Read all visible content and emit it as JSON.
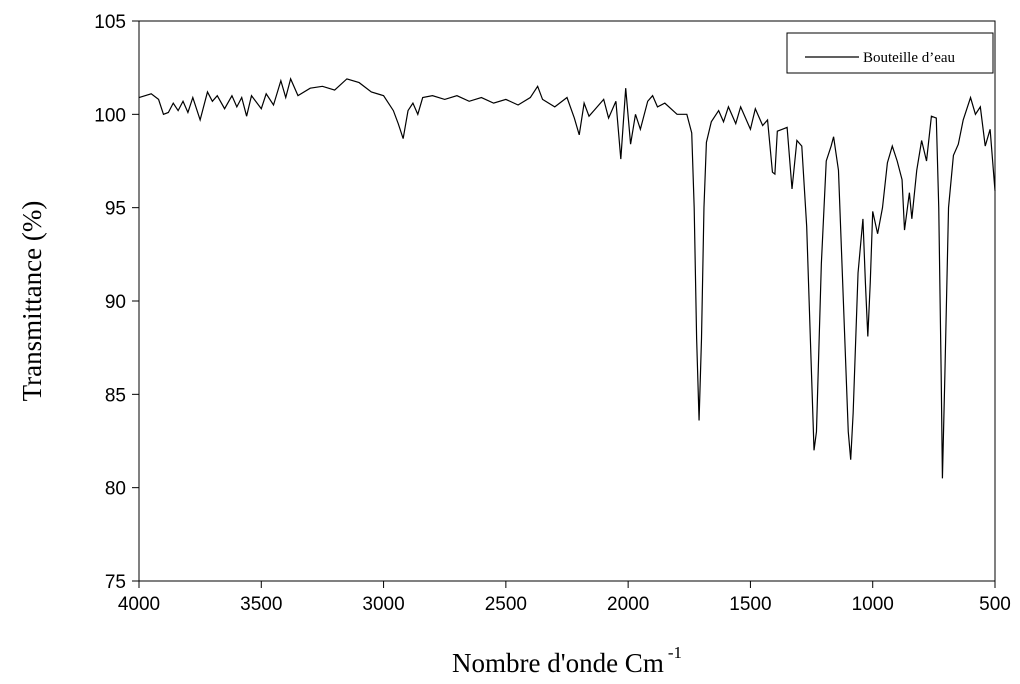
{
  "chart_data": {
    "type": "line",
    "xlabel": {
      "text": "Nombre d'onde Cm",
      "superscript": "-1"
    },
    "ylabel": "Transmittance (%)",
    "xlim": [
      4000,
      500
    ],
    "xticks": [
      4000,
      3500,
      3000,
      2500,
      2000,
      1500,
      1000,
      500
    ],
    "ylim": [
      75,
      105
    ],
    "yticks": [
      75,
      80,
      85,
      90,
      95,
      100,
      105
    ],
    "legend": "top-right",
    "x": [
      4000,
      3950,
      3920,
      3900,
      3880,
      3860,
      3840,
      3820,
      3800,
      3780,
      3750,
      3720,
      3700,
      3680,
      3650,
      3620,
      3600,
      3580,
      3560,
      3540,
      3500,
      3480,
      3450,
      3420,
      3400,
      3380,
      3350,
      3300,
      3250,
      3200,
      3150,
      3100,
      3050,
      3000,
      2960,
      2940,
      2920,
      2900,
      2880,
      2860,
      2840,
      2800,
      2750,
      2700,
      2650,
      2600,
      2550,
      2500,
      2450,
      2400,
      2370,
      2350,
      2300,
      2250,
      2220,
      2200,
      2180,
      2160,
      2140,
      2100,
      2080,
      2050,
      2030,
      2010,
      1990,
      1970,
      1950,
      1920,
      1900,
      1880,
      1850,
      1800,
      1760,
      1740,
      1730,
      1720,
      1710,
      1700,
      1690,
      1680,
      1660,
      1630,
      1610,
      1590,
      1560,
      1540,
      1500,
      1480,
      1450,
      1430,
      1410,
      1400,
      1390,
      1370,
      1350,
      1330,
      1310,
      1290,
      1270,
      1250,
      1240,
      1230,
      1210,
      1190,
      1170,
      1160,
      1140,
      1120,
      1100,
      1090,
      1080,
      1060,
      1040,
      1030,
      1020,
      1010,
      1000,
      980,
      960,
      940,
      920,
      900,
      880,
      870,
      850,
      840,
      820,
      800,
      780,
      760,
      740,
      730,
      720,
      715,
      705,
      690,
      670,
      650,
      630,
      600,
      580,
      560,
      540,
      520,
      500
    ],
    "series": [
      {
        "name": "Bouteille d’eau",
        "color": "#000000",
        "values": [
          100.9,
          101.1,
          100.8,
          100.0,
          100.1,
          100.6,
          100.2,
          100.7,
          100.1,
          100.9,
          99.7,
          101.2,
          100.7,
          101.0,
          100.3,
          101.0,
          100.4,
          100.9,
          99.9,
          101.0,
          100.3,
          101.1,
          100.5,
          101.8,
          100.9,
          101.9,
          101.0,
          101.4,
          101.5,
          101.3,
          101.9,
          101.7,
          101.2,
          101.0,
          100.2,
          99.5,
          98.7,
          100.2,
          100.6,
          100.0,
          100.9,
          101.0,
          100.8,
          101.0,
          100.7,
          100.9,
          100.6,
          100.8,
          100.5,
          100.9,
          101.5,
          100.8,
          100.4,
          100.9,
          99.8,
          98.9,
          100.6,
          99.9,
          100.2,
          100.8,
          99.8,
          100.7,
          97.6,
          101.4,
          98.4,
          100.0,
          99.2,
          100.7,
          101.0,
          100.4,
          100.6,
          100.0,
          100.0,
          99.0,
          95.0,
          88.0,
          83.6,
          88.0,
          95.0,
          98.5,
          99.6,
          100.2,
          99.6,
          100.4,
          99.5,
          100.4,
          99.2,
          100.3,
          99.4,
          99.7,
          96.9,
          96.8,
          99.1,
          99.2,
          99.3,
          96.0,
          98.6,
          98.3,
          94.0,
          86.0,
          82.0,
          83.0,
          92.0,
          97.5,
          98.3,
          98.8,
          97.0,
          90.0,
          83.0,
          81.5,
          84.0,
          91.5,
          94.4,
          91.0,
          88.1,
          91.0,
          94.8,
          93.6,
          95.0,
          97.4,
          98.3,
          97.5,
          96.5,
          93.8,
          95.8,
          94.4,
          97.0,
          98.6,
          97.5,
          99.9,
          99.8,
          95.0,
          86.0,
          80.5,
          86.0,
          95.0,
          97.8,
          98.4,
          99.7,
          100.9,
          100.0,
          100.4,
          98.3,
          99.2,
          95.9
        ]
      }
    ]
  }
}
